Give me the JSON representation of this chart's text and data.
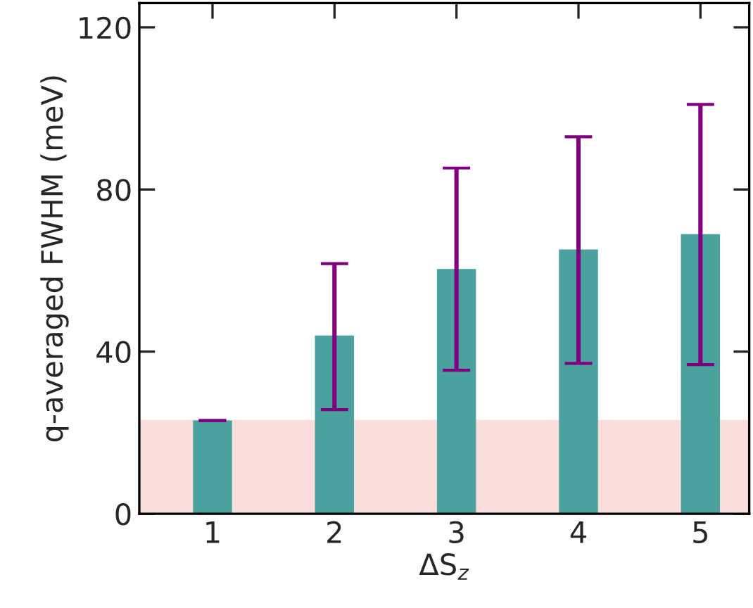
{
  "chart_data": {
    "type": "bar",
    "xlabel": "ΔS$_{z}$",
    "ylabel": "q-averaged FWHM (meV)",
    "categories": [
      "1",
      "2",
      "3",
      "4",
      "5"
    ],
    "values": [
      23,
      44,
      60.4,
      65.2,
      69
    ],
    "color": "#4aa19d",
    "errors": [
      [
        23,
        23
      ],
      [
        25.7,
        61.7
      ],
      [
        35.4,
        85.3
      ],
      [
        37.1,
        93
      ],
      [
        36.8,
        101
      ]
    ],
    "ylim": [
      0,
      126
    ],
    "yticks": [
      0,
      40,
      80,
      120
    ],
    "bands": [
      {
        "axis": "y",
        "from": 0,
        "to": 23.2,
        "color": "#f9dedc"
      }
    ],
    "grid": false
  }
}
